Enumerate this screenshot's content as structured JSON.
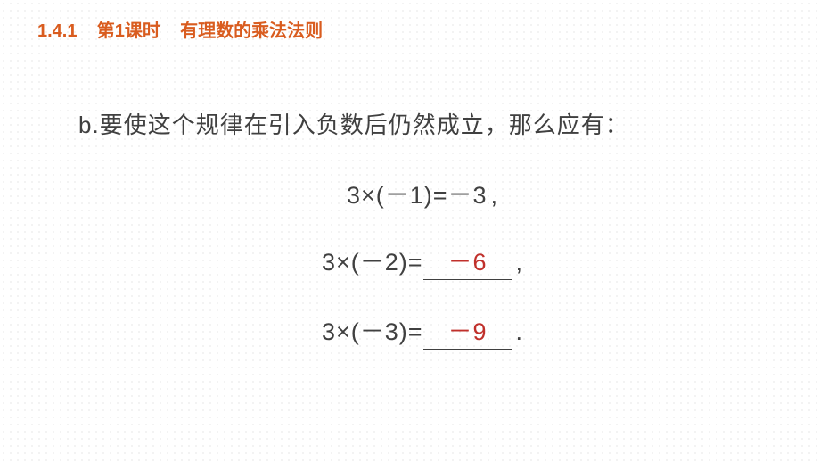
{
  "header": {
    "section": "1.4.1",
    "lesson": "第1课时",
    "title": "有理数的乘法法则"
  },
  "prompt": {
    "label": "b.",
    "text": "要使这个规律在引入负数后仍然成立，那么应有："
  },
  "equations": [
    {
      "lhs": "3×(－1)=",
      "rhs_plain": " －3",
      "rhs_blank": null,
      "punct": ","
    },
    {
      "lhs": "3×(－2)=",
      "rhs_plain": null,
      "rhs_blank": "－6",
      "punct": ","
    },
    {
      "lhs": "3×(－3)=",
      "rhs_plain": null,
      "rhs_blank": "－9",
      "punct": "."
    }
  ],
  "colors": {
    "header": "#d95c1f",
    "body_text": "#404040",
    "answer": "#c0302b",
    "background": "#ffffff",
    "dot": "#d0d0d0"
  },
  "fonts": {
    "header_size_pt": 20,
    "body_size_pt": 26,
    "equation_size_pt": 27,
    "family": "Microsoft YaHei"
  }
}
